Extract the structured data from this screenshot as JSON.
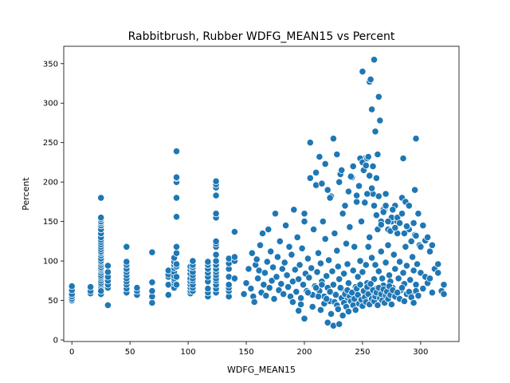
{
  "chart_data": {
    "type": "scatter",
    "title": "Rabbitbrush, Rubber WDFG_MEAN15 vs Percent",
    "xlabel": "WDFG_MEAN15",
    "ylabel": "Percent",
    "xlim": [
      -7,
      333
    ],
    "ylim": [
      -2,
      372
    ],
    "xticks": [
      0,
      50,
      100,
      150,
      200,
      250,
      300
    ],
    "yticks": [
      0,
      50,
      100,
      150,
      200,
      250,
      300,
      350
    ],
    "grid": false,
    "marker_color": "#1f77b4",
    "marker_edge": "#ffffff",
    "series": [
      {
        "x": [
          0,
          0,
          0,
          0,
          0,
          0,
          16,
          16,
          16,
          25,
          25,
          25,
          25,
          25,
          25,
          25,
          25,
          25,
          25,
          25,
          25,
          25,
          25,
          25,
          25,
          25,
          25,
          25,
          25,
          25,
          25,
          25,
          25,
          25,
          25,
          25,
          25,
          25,
          25,
          25,
          25,
          25,
          25,
          25,
          25,
          25,
          25,
          31,
          31,
          31,
          31,
          31,
          31,
          31,
          47,
          47,
          47,
          47,
          47,
          47,
          47,
          47,
          47,
          47,
          47,
          56,
          56,
          56,
          69,
          69,
          69,
          69,
          69,
          83,
          83,
          83,
          83,
          83,
          88,
          88,
          88,
          88,
          88,
          88,
          88,
          88,
          88,
          88,
          90,
          90,
          90,
          90,
          90,
          90,
          90,
          90,
          90,
          90,
          90,
          90,
          102,
          102,
          102,
          102,
          102,
          102,
          102,
          102,
          102,
          104,
          104,
          104,
          104,
          104,
          104,
          104,
          104,
          104,
          104,
          117,
          117,
          117,
          117,
          117,
          117,
          117,
          117,
          117,
          124,
          124,
          124,
          124,
          124,
          124,
          124,
          124,
          124,
          124,
          124,
          124,
          124,
          124,
          124,
          124,
          124,
          124,
          124,
          124,
          135,
          135,
          135,
          135,
          135,
          135,
          135,
          135,
          140,
          140,
          140,
          140,
          140
        ],
        "y": [
          50,
          52,
          55,
          58,
          63,
          68,
          59,
          62,
          67,
          57,
          60,
          63,
          65,
          67,
          70,
          72,
          75,
          78,
          80,
          82,
          85,
          88,
          90,
          92,
          95,
          98,
          100,
          103,
          107,
          110,
          112,
          115,
          118,
          121,
          124,
          127,
          130,
          135,
          140,
          145,
          148,
          150,
          153,
          155,
          180,
          58,
          62,
          66,
          70,
          75,
          80,
          86,
          94,
          44,
          60,
          65,
          70,
          74,
          78,
          82,
          86,
          90,
          95,
          99,
          118,
          57,
          62,
          66,
          47,
          55,
          62,
          73,
          111,
          57,
          70,
          80,
          83,
          88,
          66,
          72,
          75,
          78,
          81,
          86,
          91,
          95,
          99,
          104,
          110,
          118,
          156,
          180,
          200,
          205,
          206,
          239,
          70,
          80,
          93,
          96,
          59,
          62,
          66,
          70,
          74,
          78,
          84,
          89,
          93,
          62,
          66,
          70,
          75,
          78,
          82,
          86,
          92,
          95,
          100,
          55,
          60,
          65,
          74,
          80,
          85,
          90,
          95,
          99,
          60,
          65,
          70,
          75,
          78,
          82,
          86,
          90,
          95,
          100,
          108,
          118,
          122,
          125,
          155,
          160,
          183,
          193,
          197,
          201,
          55,
          62,
          66,
          70,
          80,
          90,
          97,
          103,
          77,
          78,
          100,
          105,
          137
        ]
      },
      {
        "x": [
          148,
          150,
          152,
          154,
          155,
          156,
          157,
          158,
          159,
          160,
          161,
          162,
          163,
          164,
          165,
          166,
          167,
          168,
          169,
          170,
          171,
          172,
          173,
          174,
          175,
          176,
          177,
          178,
          179,
          180,
          181,
          182,
          183,
          184,
          185,
          186,
          187,
          188,
          189,
          190,
          191,
          192,
          193,
          194,
          195,
          196,
          197,
          198,
          199,
          200,
          201,
          202,
          203,
          204,
          205,
          206,
          207,
          208,
          209,
          210,
          211,
          212,
          213,
          214,
          215,
          216,
          217,
          218,
          219,
          220,
          221,
          222,
          223,
          224,
          225,
          226,
          227,
          228,
          229,
          230,
          231,
          232,
          233,
          234,
          235,
          236,
          237,
          238,
          239,
          240,
          241,
          242,
          243,
          244,
          245,
          246,
          247,
          248,
          249,
          250,
          251,
          252,
          253,
          254,
          255,
          256,
          257,
          258,
          259,
          260,
          261,
          262,
          263,
          264,
          265,
          266,
          267,
          268,
          269,
          270,
          271,
          272,
          273,
          274,
          275,
          276,
          277,
          278,
          279,
          280,
          281,
          282,
          283,
          284,
          285,
          286,
          287,
          288,
          289,
          290,
          291,
          292,
          293,
          294,
          295,
          296,
          297,
          298,
          299,
          300,
          302,
          304,
          306,
          308,
          310,
          312,
          315,
          318,
          320,
          320
        ],
        "y": [
          58,
          72,
          90,
          65,
          110,
          55,
          48,
          95,
          102,
          78,
          88,
          120,
          60,
          135,
          70,
          85,
          56,
          99,
          140,
          66,
          112,
          75,
          92,
          52,
          160,
          80,
          105,
          63,
          125,
          71,
          90,
          58,
          98,
          145,
          82,
          67,
          118,
          55,
          108,
          74,
          165,
          89,
          61,
          130,
          77,
          95,
          53,
          116,
          70,
          150,
          84,
          62,
          103,
          79,
          250,
          91,
          57,
          140,
          68,
          196,
          86,
          110,
          62,
          97,
          74,
          150,
          55,
          128,
          81,
          66,
          101,
          49,
          182,
          87,
          70,
          135,
          58,
          113,
          93,
          77,
          210,
          65,
          160,
          84,
          50,
          122,
          96,
          72,
          143,
          57,
          206,
          88,
          118,
          67,
          175,
          80,
          53,
          100,
          150,
          86,
          61,
          230,
          95,
          72,
          118,
          130,
          58,
          104,
          185,
          77,
          95,
          65,
          140,
          87,
          55,
          112,
          78,
          69,
          165,
          98,
          60,
          120,
          82,
          74,
          150,
          66,
          108,
          90,
          57,
          135,
          78,
          99,
          63,
          180,
          85,
          71,
          118,
          94,
          58,
          140,
          76,
          60,
          105,
          88,
          133,
          70,
          96,
          55,
          120,
          85,
          65,
          80,
          72,
          78,
          60,
          90,
          85,
          62,
          70,
          58
        ]
      },
      {
        "x": [
          190,
          195,
          197,
          200,
          203,
          207,
          210,
          212,
          214,
          215,
          217,
          219,
          220,
          222,
          223,
          225,
          226,
          227,
          228,
          229,
          230,
          231,
          232,
          233,
          234,
          235,
          236,
          237,
          238,
          239,
          240,
          241,
          242,
          243,
          244,
          245,
          246,
          247,
          248,
          249,
          250,
          251,
          252,
          253,
          254,
          255,
          256,
          257,
          258,
          259,
          260,
          261,
          262,
          263,
          264,
          265,
          266,
          267,
          268,
          269,
          270,
          271,
          272,
          273,
          274,
          275,
          276,
          278,
          280,
          282,
          284,
          286,
          288,
          290,
          292,
          294,
          296,
          298
        ],
        "y": [
          48,
          37,
          45,
          27,
          60,
          42,
          66,
          55,
          38,
          70,
          46,
          52,
          22,
          61,
          33,
          18,
          48,
          57,
          44,
          39,
          20,
          66,
          53,
          31,
          47,
          58,
          42,
          63,
          36,
          55,
          49,
          60,
          44,
          52,
          38,
          65,
          57,
          46,
          70,
          51,
          43,
          62,
          54,
          48,
          67,
          58,
          45,
          71,
          52,
          63,
          49,
          55,
          60,
          44,
          66,
          53,
          58,
          50,
          64,
          47,
          56,
          61,
          52,
          68,
          57,
          45,
          63,
          55,
          60,
          52,
          66,
          49,
          58,
          61,
          54,
          47,
          62,
          56
        ]
      },
      {
        "x": [
          200,
          205,
          210,
          213,
          215,
          218,
          220,
          222,
          225,
          228,
          230,
          232,
          235,
          238,
          240,
          242,
          245,
          247,
          248,
          250,
          251,
          252,
          253,
          254,
          255,
          256,
          257,
          258,
          259,
          260,
          261,
          262,
          263,
          264,
          265,
          266,
          268,
          270,
          272,
          275,
          278,
          280,
          285,
          287,
          290,
          295,
          296
        ],
        "y": [
          160,
          205,
          212,
          232,
          198,
          223,
          190,
          180,
          255,
          235,
          200,
          215,
          170,
          188,
          207,
          220,
          183,
          195,
          230,
          225,
          215,
          175,
          221,
          230,
          232,
          327,
          330,
          292,
          220,
          355,
          264,
          205,
          235,
          308,
          278,
          150,
          165,
          185,
          140,
          155,
          170,
          150,
          230,
          175,
          170,
          190,
          255
        ]
      },
      {
        "x": [
          250,
          252,
          254,
          256,
          258,
          260,
          262,
          264,
          266,
          268,
          270,
          272,
          274,
          276,
          278,
          280,
          282,
          284,
          286,
          288,
          290,
          292,
          294,
          296,
          298,
          300,
          302,
          304,
          306,
          308,
          310,
          315
        ],
        "y": [
          340,
          174,
          185,
          208,
          192,
          170,
          158,
          182,
          146,
          162,
          170,
          150,
          138,
          165,
          142,
          155,
          148,
          160,
          135,
          144,
          170,
          125,
          148,
          132,
          160,
          118,
          145,
          126,
          130,
          112,
          120,
          96
        ]
      }
    ]
  }
}
